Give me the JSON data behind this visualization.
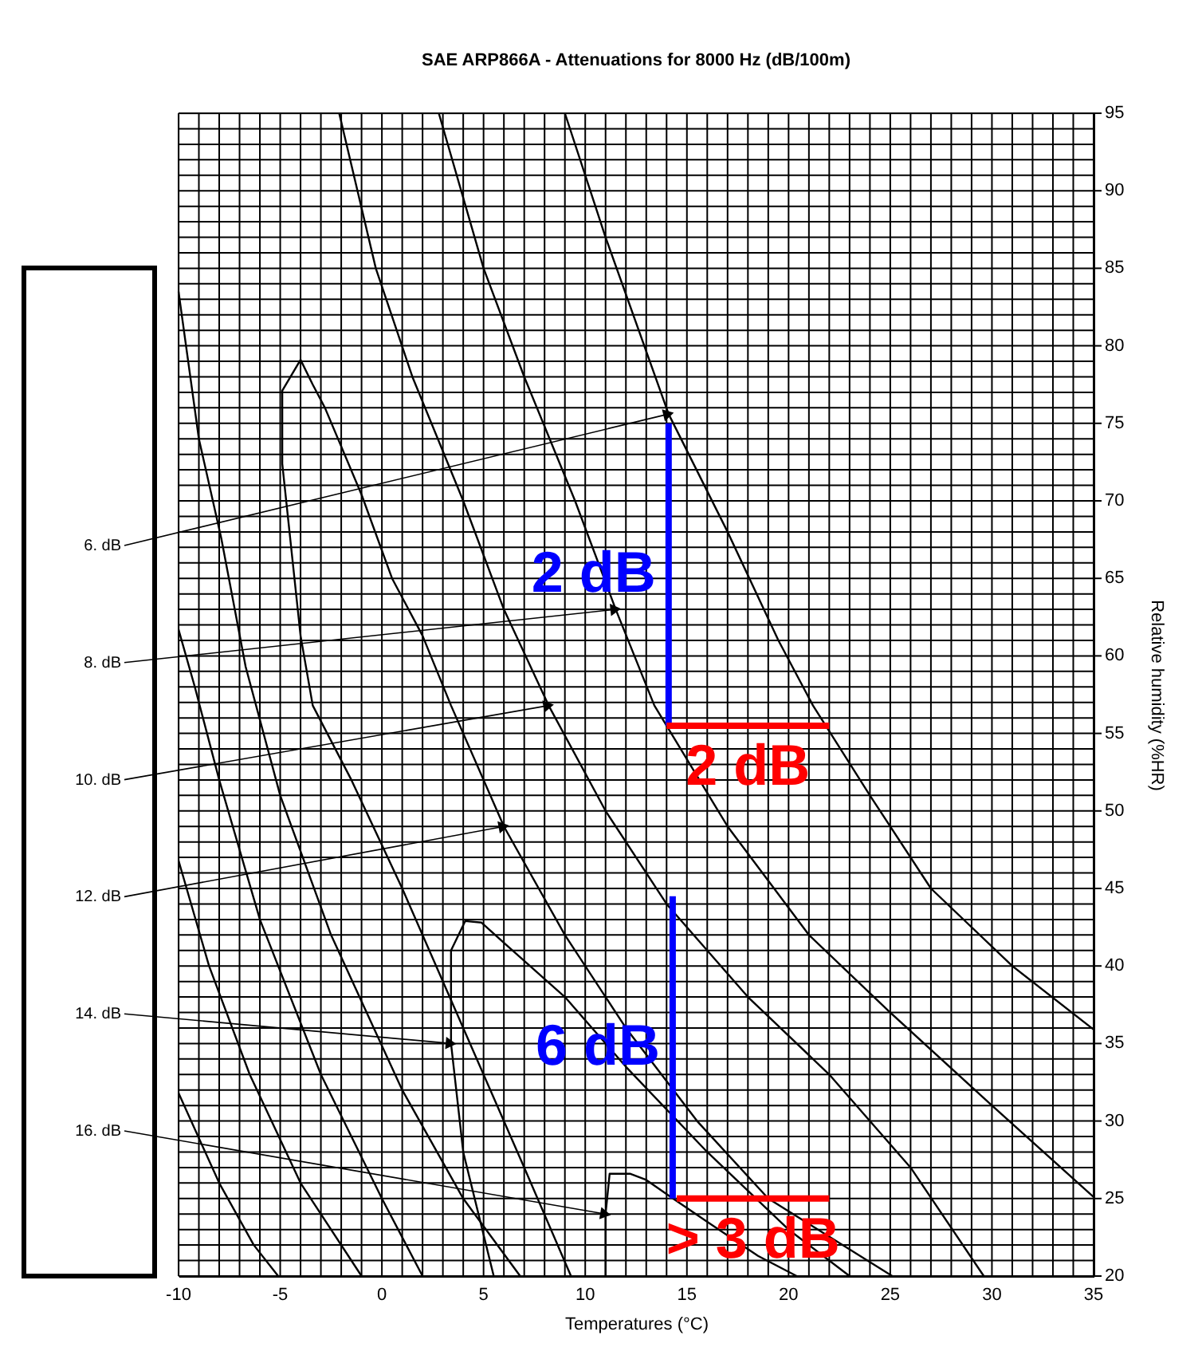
{
  "chart_data": {
    "type": "line",
    "title": "SAE ARP866A - Attenuations for 8000 Hz (dB/100m)",
    "xlabel": "Temperatures (°C)",
    "ylabel": "Relative humidity (%HR)",
    "xlim": [
      -10,
      35
    ],
    "ylim": [
      20,
      95
    ],
    "xticks": [
      -10,
      {
        "value": -9,
        "label": null
      },
      {
        "value": -8,
        "label": null
      },
      {
        "value": -7,
        "label": null
      },
      {
        "value": -6,
        "label": null
      },
      -5,
      {
        "value": -4,
        "label": null
      },
      {
        "value": -3,
        "label": null
      },
      {
        "value": -2,
        "label": null
      },
      {
        "value": -1,
        "label": null
      },
      0,
      {
        "value": 1,
        "label": null
      },
      {
        "value": 2,
        "label": null
      },
      {
        "value": 3,
        "label": null
      },
      {
        "value": 4,
        "label": null
      },
      5,
      {
        "value": 6,
        "label": null
      },
      {
        "value": 7,
        "label": null
      },
      {
        "value": 8,
        "label": null
      },
      {
        "value": 9,
        "label": null
      },
      10,
      {
        "value": 11,
        "label": null
      },
      {
        "value": 12,
        "label": null
      },
      {
        "value": 13,
        "label": null
      },
      {
        "value": 14,
        "label": null
      },
      15,
      {
        "value": 16,
        "label": null
      },
      {
        "value": 17,
        "label": null
      },
      {
        "value": 18,
        "label": null
      },
      {
        "value": 19,
        "label": null
      },
      20,
      {
        "value": 21,
        "label": null
      },
      {
        "value": 22,
        "label": null
      },
      {
        "value": 23,
        "label": null
      },
      {
        "value": 24,
        "label": null
      },
      25,
      {
        "value": 26,
        "label": null
      },
      {
        "value": 27,
        "label": null
      },
      {
        "value": 28,
        "label": null
      },
      {
        "value": 29,
        "label": null
      },
      30,
      {
        "value": 31,
        "label": null
      },
      {
        "value": 32,
        "label": null
      },
      {
        "value": 33,
        "label": null
      },
      {
        "value": 34,
        "label": null
      },
      35
    ],
    "yticks": [
      20,
      {
        "value": 21,
        "label": null
      },
      {
        "value": 22,
        "label": null
      },
      {
        "value": 23,
        "label": null
      },
      {
        "value": 24,
        "label": null
      },
      25,
      {
        "value": 26,
        "label": null
      },
      {
        "value": 27,
        "label": null
      },
      {
        "value": 28,
        "label": null
      },
      {
        "value": 29,
        "label": null
      },
      30,
      {
        "value": 31,
        "label": null
      },
      {
        "value": 32,
        "label": null
      },
      {
        "value": 33,
        "label": null
      },
      {
        "value": 34,
        "label": null
      },
      35,
      {
        "value": 36,
        "label": null
      },
      {
        "value": 37,
        "label": null
      },
      {
        "value": 38,
        "label": null
      },
      {
        "value": 39,
        "label": null
      },
      40,
      {
        "value": 41,
        "label": null
      },
      {
        "value": 42,
        "label": null
      },
      {
        "value": 43,
        "label": null
      },
      {
        "value": 44,
        "label": null
      },
      45,
      {
        "value": 46,
        "label": null
      },
      {
        "value": 47,
        "label": null
      },
      {
        "value": 48,
        "label": null
      },
      {
        "value": 49,
        "label": null
      },
      50,
      {
        "value": 51,
        "label": null
      },
      {
        "value": 52,
        "label": null
      },
      {
        "value": 53,
        "label": null
      },
      {
        "value": 54,
        "label": null
      },
      55,
      {
        "value": 56,
        "label": null
      },
      {
        "value": 57,
        "label": null
      },
      {
        "value": 58,
        "label": null
      },
      {
        "value": 59,
        "label": null
      },
      60,
      {
        "value": 61,
        "label": null
      },
      {
        "value": 62,
        "label": null
      },
      {
        "value": 63,
        "label": null
      },
      {
        "value": 64,
        "label": null
      },
      65,
      {
        "value": 66,
        "label": null
      },
      {
        "value": 67,
        "label": null
      },
      {
        "value": 68,
        "label": null
      },
      {
        "value": 69,
        "label": null
      },
      70,
      {
        "value": 71,
        "label": null
      },
      {
        "value": 72,
        "label": null
      },
      {
        "value": 73,
        "label": null
      },
      {
        "value": 74,
        "label": null
      },
      75,
      {
        "value": 76,
        "label": null
      },
      {
        "value": 77,
        "label": null
      },
      {
        "value": 78,
        "label": null
      },
      {
        "value": 79,
        "label": null
      },
      80,
      {
        "value": 81,
        "label": null
      },
      {
        "value": 82,
        "label": null
      },
      {
        "value": 83,
        "label": null
      },
      {
        "value": 84,
        "label": null
      },
      85,
      {
        "value": 86,
        "label": null
      },
      {
        "value": 87,
        "label": null
      },
      {
        "value": 88,
        "label": null
      },
      {
        "value": 89,
        "label": null
      },
      90,
      {
        "value": 91,
        "label": null
      },
      {
        "value": 92,
        "label": null
      },
      {
        "value": 93,
        "label": null
      },
      {
        "value": 94,
        "label": null
      },
      95
    ],
    "grid": true,
    "line_style": "solid",
    "marker": "none",
    "series": [
      {
        "color": "#000000",
        "x": [
          -10,
          -8,
          -6.3,
          -5.1
        ],
        "values": [
          31.8,
          26,
          22,
          20
        ]
      },
      {
        "color": "#000000",
        "x": [
          -10,
          -8.5,
          -6.5,
          -4,
          -1
        ],
        "values": [
          46.8,
          40,
          33,
          26,
          20
        ]
      },
      {
        "color": "#000000",
        "x": [
          -10,
          -9.2,
          -8,
          -6,
          -3,
          0,
          2
        ],
        "values": [
          61.7,
          58,
          52,
          43,
          33,
          25,
          20
        ]
      },
      {
        "color": "#000000",
        "x": [
          -10,
          -9,
          -7.9,
          -6.7,
          -5,
          -2.5,
          1,
          4,
          6.8
        ],
        "values": [
          83.5,
          74,
          67.6,
          59.3,
          51,
          42,
          32,
          25,
          20
        ]
      },
      {
        "color": "#000000",
        "x": [
          9.3,
          7,
          4,
          1,
          -1.5,
          -3.4,
          -4,
          -4.9,
          -4.9,
          -4,
          -3.4,
          -2.8,
          -1,
          0.5,
          2,
          3.4,
          6,
          9,
          12,
          15.5,
          19,
          25.1
        ],
        "values": [
          20,
          27,
          36,
          45,
          52,
          56.8,
          61.3,
          72.4,
          77.1,
          79.1,
          77.5,
          76,
          70.4,
          65,
          61.3,
          56.8,
          49,
          42,
          36,
          30,
          25,
          20
        ]
      },
      {
        "color": "#000000",
        "x": [
          5.5,
          4,
          3.4,
          3.4,
          4.1,
          4.9,
          6,
          9,
          12,
          16,
          20,
          23
        ],
        "values": [
          20,
          28,
          35,
          41,
          42.9,
          42.8,
          41.5,
          38,
          33.5,
          28,
          23,
          20
        ]
      },
      {
        "color": "#000000",
        "x": [
          11,
          11,
          11.2,
          12.2,
          13,
          14.2,
          16,
          18.5,
          20.4
        ],
        "values": [
          20,
          24,
          26.6,
          26.6,
          26.2,
          25.1,
          23.5,
          21.3,
          20
        ]
      },
      {
        "color": "#000000",
        "x": [
          -2.1,
          -0.3,
          1.5,
          4,
          6,
          8.2,
          11,
          14,
          18,
          22,
          26,
          29.6
        ],
        "values": [
          95,
          85,
          78,
          70,
          63,
          56.8,
          50,
          44,
          38,
          33,
          27,
          20
        ]
      },
      {
        "color": "#000000",
        "x": [
          2.8,
          5,
          7,
          9.5,
          11.5,
          13.4,
          17,
          21,
          25,
          30,
          35
        ],
        "values": [
          95,
          85,
          78,
          70,
          63,
          56.8,
          49,
          42,
          37,
          31,
          25.1
        ]
      },
      {
        "color": "#000000",
        "x": [
          9,
          11,
          14.1,
          17,
          19.5,
          21.2,
          24,
          27,
          31,
          35
        ],
        "values": [
          95,
          87,
          75.6,
          68,
          61,
          56.8,
          51,
          45,
          40,
          35.9
        ]
      },
      {
        "name": "2 dB",
        "color": "#0000ff",
        "x": [
          14.1,
          14.1
        ],
        "values": [
          55.5,
          75
        ]
      },
      {
        "name": "2 dB",
        "color": "#ff0000",
        "x": [
          14,
          22
        ],
        "values": [
          55.5,
          55.5
        ]
      },
      {
        "name": "6 dB",
        "color": "#0000ff",
        "x": [
          14.3,
          14.3
        ],
        "values": [
          25,
          44.5
        ]
      },
      {
        "name": "> 3 dB",
        "color": "#ff0000",
        "x": [
          14.5,
          22
        ],
        "values": [
          25,
          25
        ]
      }
    ],
    "annotations": [
      {
        "text": "6. dB",
        "x": 14.1,
        "y": 75.6
      },
      {
        "text": "8. dB",
        "x": 11.5,
        "y": 63
      },
      {
        "text": "10. dB",
        "x": 8.2,
        "y": 56.8
      },
      {
        "text": "12. dB",
        "x": 6,
        "y": 49
      },
      {
        "text": "14. dB",
        "x": 3.4,
        "y": 35
      },
      {
        "text": "16. dB",
        "x": 11,
        "y": 24
      }
    ]
  }
}
